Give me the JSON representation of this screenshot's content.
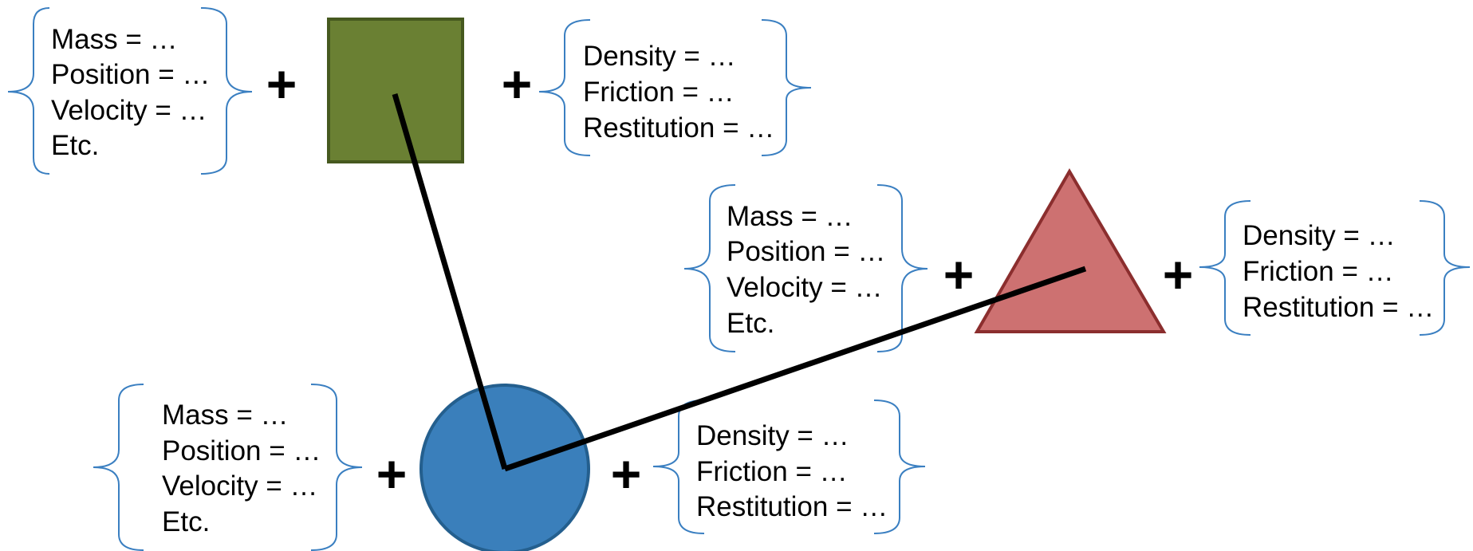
{
  "body_properties": [
    "Mass = …",
    "Position = …",
    "Velocity = …",
    "Etc."
  ],
  "fixture_properties": [
    "Density = …",
    "Friction = …",
    "Restitution = …"
  ],
  "plus_sign": "+",
  "colors": {
    "square_fill": "#6a8033",
    "square_stroke": "#46591f",
    "triangle_fill": "#cd7171",
    "triangle_stroke": "#8b2e2e",
    "circle_fill": "#3a7fbb",
    "circle_stroke": "#245f8e",
    "brace": "#3a7fc1",
    "joint_line": "#000000"
  },
  "shapes": [
    "square",
    "triangle",
    "circle"
  ]
}
